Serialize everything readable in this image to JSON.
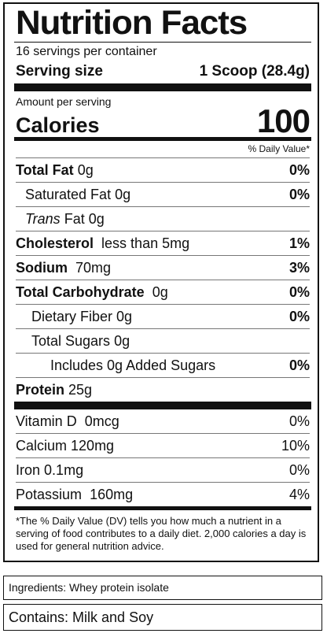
{
  "label": {
    "title": "Nutrition Facts",
    "servings_per_container": "16 servings per container",
    "serving_size_label": "Serving size",
    "serving_size_value": "1 Scoop (28.4g)",
    "amount_per_serving": "Amount per serving",
    "calories_label": "Calories",
    "calories_value": "100",
    "daily_value_header": "% Daily Value*",
    "nutrients": [
      {
        "name": "Total Fat",
        "amount": "0g",
        "dv": "0%"
      },
      {
        "name": "Saturated Fat",
        "amount": "0g",
        "dv": "0%"
      },
      {
        "name": "Trans",
        "suffix": "Fat 0g",
        "dv": ""
      },
      {
        "name": "Cholesterol",
        "amount": "less than 5mg",
        "dv": "1%"
      },
      {
        "name": "Sodium",
        "amount": "70mg",
        "dv": "3%"
      },
      {
        "name": "Total Carbohydrate",
        "amount": "0g",
        "dv": "0%"
      },
      {
        "name": "Dietary Fiber",
        "amount": "0g",
        "dv": "0%"
      },
      {
        "name": "Total Sugars",
        "amount": "0g",
        "dv": ""
      },
      {
        "name": "Includes 0g Added Sugars",
        "amount": "",
        "dv": "0%"
      },
      {
        "name": "Protein",
        "amount": "25g",
        "dv": ""
      }
    ],
    "vitamins": [
      {
        "name": "Vitamin D",
        "amount": "0mcg",
        "dv": "0%"
      },
      {
        "name": "Calcium",
        "amount": "120mg",
        "dv": "10%"
      },
      {
        "name": "Iron",
        "amount": "0.1mg",
        "dv": "0%"
      },
      {
        "name": "Potassium",
        "amount": "160mg",
        "dv": "4%"
      }
    ],
    "footnote": "*The % Daily Value (DV) tells you how much a nutrient in a serving of food contributes to a daily diet. 2,000 calories a day is used for general nutrition advice."
  },
  "ingredients": "Ingredients: Whey protein isolate",
  "contains": "Contains: Milk and Soy"
}
